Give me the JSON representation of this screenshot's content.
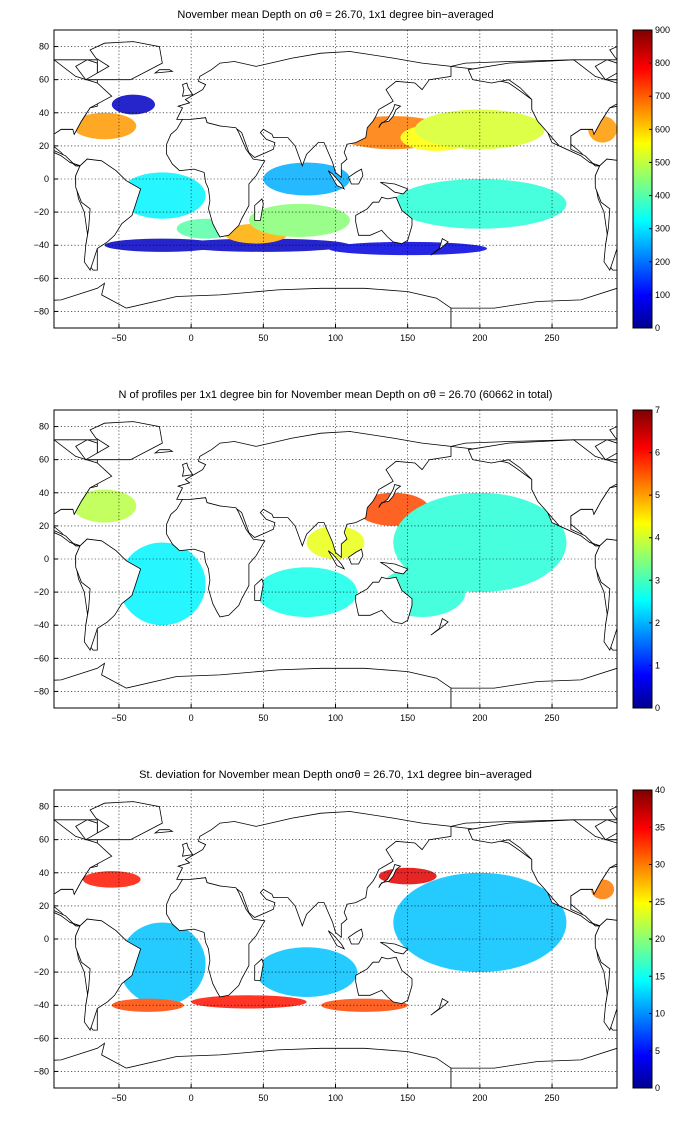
{
  "chart_data": [
    {
      "type": "heatmap",
      "title": "November mean Depth on σθ = 26.70, 1x1 degree bin−averaged",
      "x_ticks": [
        "−50",
        "0",
        "50",
        "100",
        "150",
        "200",
        "250"
      ],
      "x_tick_values": [
        -50,
        0,
        50,
        100,
        150,
        200,
        250
      ],
      "y_ticks": [
        "80",
        "60",
        "40",
        "20",
        "0",
        "−20",
        "−40",
        "−60",
        "−80"
      ],
      "y_tick_values": [
        80,
        60,
        40,
        20,
        0,
        -20,
        -40,
        -60,
        -80
      ],
      "xlim": [
        -95,
        295
      ],
      "ylim": [
        -90,
        90
      ],
      "grid": true,
      "colorbar": {
        "ticks": [
          "0",
          "100",
          "200",
          "300",
          "400",
          "500",
          "600",
          "700",
          "800",
          "900"
        ],
        "tick_values": [
          0,
          100,
          200,
          300,
          400,
          500,
          600,
          700,
          800,
          900
        ],
        "range": [
          0,
          900
        ],
        "colormap": "jet"
      }
    },
    {
      "type": "heatmap",
      "title": "N of profiles per 1x1 degree bin for November mean Depth on σθ = 26.70 (60662 in total)",
      "x_ticks": [
        "−50",
        "0",
        "50",
        "100",
        "150",
        "200",
        "250"
      ],
      "x_tick_values": [
        -50,
        0,
        50,
        100,
        150,
        200,
        250
      ],
      "y_ticks": [
        "80",
        "60",
        "40",
        "20",
        "0",
        "−20",
        "−40",
        "−60",
        "−80"
      ],
      "y_tick_values": [
        80,
        60,
        40,
        20,
        0,
        -20,
        -40,
        -60,
        -80
      ],
      "xlim": [
        -95,
        295
      ],
      "ylim": [
        -90,
        90
      ],
      "grid": true,
      "colorbar": {
        "ticks": [
          "0",
          "1",
          "2",
          "3",
          "4",
          "5",
          "6",
          "7"
        ],
        "tick_values": [
          0,
          1,
          2,
          3,
          4,
          5,
          6,
          7
        ],
        "range": [
          0,
          7
        ],
        "colormap": "jet"
      }
    },
    {
      "type": "heatmap",
      "title": "St. deviation for November mean Depth onσθ = 26.70, 1x1 degree bin−averaged",
      "x_ticks": [
        "−50",
        "0",
        "50",
        "100",
        "150",
        "200",
        "250"
      ],
      "x_tick_values": [
        -50,
        0,
        50,
        100,
        150,
        200,
        250
      ],
      "y_ticks": [
        "80",
        "60",
        "40",
        "20",
        "0",
        "−20",
        "−40",
        "−60",
        "−80"
      ],
      "y_tick_values": [
        80,
        60,
        40,
        20,
        0,
        -20,
        -40,
        -60,
        -80
      ],
      "xlim": [
        -95,
        295
      ],
      "ylim": [
        -90,
        90
      ],
      "grid": true,
      "colorbar": {
        "ticks": [
          "0",
          "5",
          "10",
          "15",
          "20",
          "25",
          "30",
          "35",
          "40"
        ],
        "tick_values": [
          0,
          5,
          10,
          15,
          20,
          25,
          30,
          35,
          40
        ],
        "range": [
          0,
          40
        ],
        "colormap": "jet"
      }
    }
  ]
}
